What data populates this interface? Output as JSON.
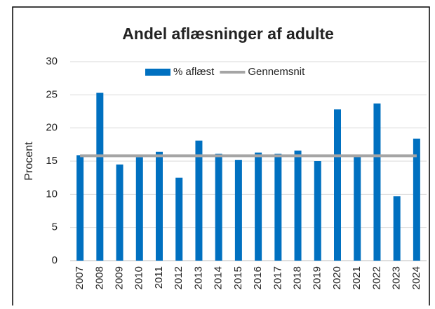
{
  "chart_data": {
    "type": "bar",
    "title": "Andel aflæsninger af adulte",
    "ylabel": "Procent",
    "categories": [
      "2007",
      "2008",
      "2009",
      "2010",
      "2011",
      "2012",
      "2013",
      "2014",
      "2015",
      "2016",
      "2017",
      "2018",
      "2019",
      "2020",
      "2021",
      "2022",
      "2023",
      "2024"
    ],
    "series": [
      {
        "name": "% aflæst",
        "type": "bar",
        "color": "#0070c0",
        "values": [
          15.9,
          25.3,
          14.5,
          15.6,
          16.4,
          12.5,
          18.1,
          16.1,
          15.2,
          16.3,
          16.1,
          16.6,
          15.0,
          22.8,
          15.7,
          23.7,
          9.7,
          18.4
        ]
      },
      {
        "name": "Gennemsnit",
        "type": "line",
        "color": "#a5a5a5",
        "values": [
          15.8,
          15.8,
          15.8,
          15.8,
          15.8,
          15.8,
          15.8,
          15.8,
          15.8,
          15.8,
          15.8,
          15.8,
          15.8,
          15.8,
          15.8,
          15.8,
          15.8,
          15.8
        ]
      }
    ],
    "ylim": [
      0,
      30
    ],
    "yticks": [
      0,
      5,
      10,
      15,
      20,
      25,
      30
    ],
    "grid": true,
    "legend": "top"
  }
}
